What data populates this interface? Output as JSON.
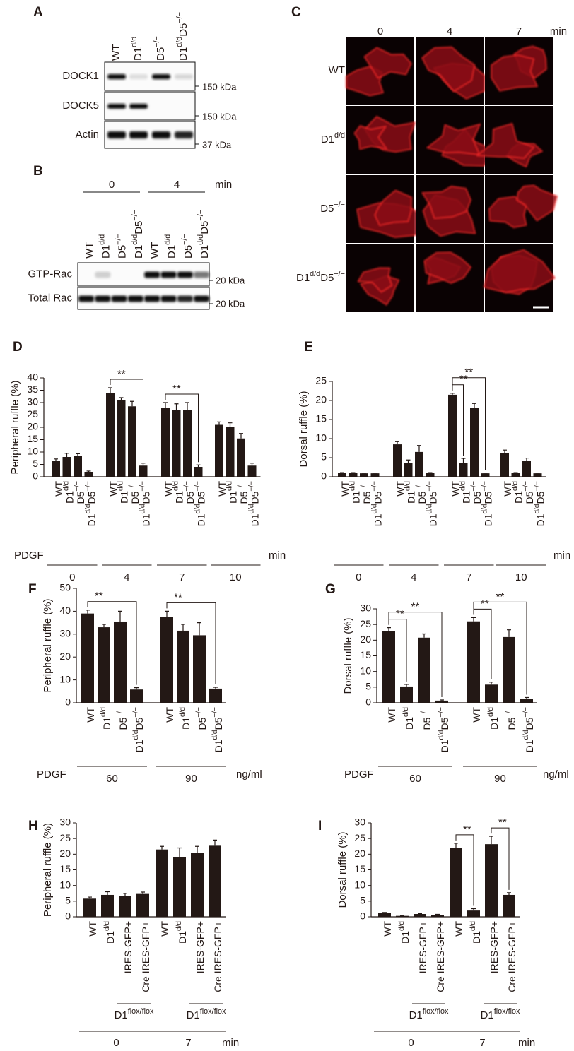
{
  "blot_a": {
    "panel": "A",
    "lanes": [
      "WT",
      "D1d/d",
      "D5−/−",
      "D1d/dD5−/−"
    ],
    "rows": [
      {
        "label": "DOCK1",
        "marker": "150 kDa"
      },
      {
        "label": "DOCK5",
        "marker": "150 kDa"
      },
      {
        "label": "Actin",
        "marker": "37 kDa"
      }
    ]
  },
  "blot_b": {
    "panel": "B",
    "timepoints": [
      "0",
      "4"
    ],
    "unit": "min",
    "lanes": [
      "WT",
      "D1d/d",
      "D5−/−",
      "D1d/dD5−/−",
      "WT",
      "D1d/d",
      "D5−/−",
      "D1d/dD5−/−"
    ],
    "rows": [
      {
        "label": "GTP-Rac",
        "marker": "20 kDa"
      },
      {
        "label": "Total Rac",
        "marker": "20 kDa"
      }
    ]
  },
  "micrograph_c": {
    "panel": "C",
    "timepoints": [
      "0",
      "4",
      "7"
    ],
    "unit": "min",
    "rows": [
      "WT",
      "D1d/d",
      "D5−/−",
      "D1d/dD5−/−"
    ]
  },
  "chart_data": [
    {
      "type": "bar",
      "panel": "D",
      "ylabel": "Peripheral ruffle (%)",
      "ylim": [
        0,
        40
      ],
      "yticks": [
        0,
        5,
        10,
        15,
        20,
        25,
        30,
        35,
        40
      ],
      "categories": [
        "WT",
        "D1d/d",
        "D5−/−",
        "D1d/dD5−/−",
        "WT",
        "D1d/d",
        "D5−/−",
        "D1d/dD5−/−",
        "WT",
        "D1d/d",
        "D5−/−",
        "D1d/dD5−/−",
        "WT",
        "D1d/d",
        "D5−/−",
        "D1d/dD5−/−"
      ],
      "values": [
        6.5,
        8,
        8.5,
        2,
        34,
        31,
        28.5,
        4.5,
        28,
        27,
        27,
        4,
        21,
        20,
        15.5,
        4.5
      ],
      "errors": [
        0.7,
        1.5,
        0.8,
        0.3,
        2,
        1,
        2,
        1,
        2,
        2.5,
        3,
        0.8,
        1.2,
        1.8,
        2,
        1
      ],
      "color": "#231815",
      "group_title": "PDGF",
      "groups": [
        "0",
        "4",
        "7",
        "10"
      ],
      "group_unit": "min",
      "significance": [
        {
          "from": 4,
          "to": 7,
          "label": "**"
        },
        {
          "from": 8,
          "to": 11,
          "label": "**"
        }
      ]
    },
    {
      "type": "bar",
      "panel": "E",
      "ylabel": "Dorsal ruffle (%)",
      "ylim": [
        0,
        25
      ],
      "yticks": [
        0,
        5,
        10,
        15,
        20,
        25
      ],
      "categories": [
        "WT",
        "D1d/d",
        "D5−/−",
        "D1d/dD5−/−",
        "WT",
        "D1d/d",
        "D5−/−",
        "D1d/dD5−/−",
        "WT",
        "D1d/d",
        "D5−/−",
        "D1d/dD5−/−",
        "WT",
        "D1d/d",
        "D5−/−",
        "D1d/dD5−/−"
      ],
      "values": [
        1,
        1,
        0.9,
        0.9,
        8.5,
        3.7,
        6.5,
        1,
        21.5,
        3.6,
        18,
        0.9,
        6.2,
        1,
        4.2,
        0.9
      ],
      "errors": [
        0.1,
        0.1,
        0.1,
        0.1,
        0.7,
        0.7,
        1.7,
        0.1,
        0.4,
        1.2,
        1.2,
        0.1,
        0.8,
        0.1,
        0.7,
        0.1
      ],
      "color": "#231815",
      "groups": [
        "0",
        "4",
        "7",
        "10"
      ],
      "group_unit": "min",
      "significance": [
        {
          "from": 8,
          "to": 9,
          "label": "**"
        },
        {
          "from": 8,
          "to": 11,
          "label": "**"
        }
      ]
    },
    {
      "type": "bar",
      "panel": "F",
      "ylabel": "Peripheral ruffle (%)",
      "ylim": [
        0,
        50
      ],
      "yticks": [
        0,
        10,
        20,
        30,
        40,
        50
      ],
      "categories": [
        "WT",
        "D1d/d",
        "D5−/−",
        "D1d/dD5−/−",
        "WT",
        "D1d/d",
        "D5−/−",
        "D1d/dD5−/−"
      ],
      "values": [
        39,
        33,
        35.5,
        5.8,
        37.5,
        31.5,
        29.5,
        6.2
      ],
      "errors": [
        1.5,
        1.3,
        4.5,
        0.8,
        2.5,
        2.8,
        5.5,
        0.6
      ],
      "color": "#231815",
      "group_title": "PDGF",
      "groups": [
        "60",
        "90"
      ],
      "group_unit": "ng/ml",
      "significance": [
        {
          "from": 0,
          "to": 3,
          "label": "**"
        },
        {
          "from": 4,
          "to": 7,
          "label": "**"
        }
      ]
    },
    {
      "type": "bar",
      "panel": "G",
      "ylabel": "Dorsal ruffle (%)",
      "ylim": [
        0,
        30
      ],
      "yticks": [
        0,
        5,
        10,
        15,
        20,
        25,
        30
      ],
      "categories": [
        "WT",
        "D1d/d",
        "D5−/−",
        "D1d/dD5−/−",
        "WT",
        "D1d/d",
        "D5−/−",
        "D1d/dD5−/−"
      ],
      "values": [
        23,
        5.2,
        20.8,
        0.7,
        26,
        5.8,
        21,
        1.3
      ],
      "errors": [
        1,
        0.7,
        1.2,
        0.2,
        1.2,
        0.8,
        2.3,
        0.4
      ],
      "color": "#231815",
      "group_title": "PDGF",
      "groups": [
        "60",
        "90"
      ],
      "group_unit": "ng/ml",
      "significance": [
        {
          "from": 0,
          "to": 1,
          "label": "**"
        },
        {
          "from": 0,
          "to": 3,
          "label": "**"
        },
        {
          "from": 4,
          "to": 5,
          "label": "**"
        },
        {
          "from": 4,
          "to": 7,
          "label": "**"
        }
      ]
    },
    {
      "type": "bar",
      "panel": "H",
      "ylabel": "Peripheral ruffle (%)",
      "ylim": [
        0,
        30
      ],
      "yticks": [
        0,
        5,
        10,
        15,
        20,
        25,
        30
      ],
      "categories": [
        "WT",
        "D1d/d",
        "IRES-GFP+",
        "Cre IRES-GFP+",
        "WT",
        "D1d/d",
        "IRES-GFP+",
        "Cre IRES-GFP+"
      ],
      "values": [
        5.8,
        7,
        6.7,
        7.3,
        21.5,
        19,
        20.5,
        22.7
      ],
      "errors": [
        0.5,
        1,
        0.8,
        0.6,
        1,
        3,
        2,
        1.8
      ],
      "color": "#231815",
      "groups": [
        "0",
        "7"
      ],
      "group_unit": "min",
      "sublabels": [
        {
          "label": "D1flox/flox",
          "from": 2,
          "to": 3
        },
        {
          "label": "D1flox/flox",
          "from": 6,
          "to": 7
        }
      ],
      "significance": []
    },
    {
      "type": "bar",
      "panel": "I",
      "ylabel": "Dorsal ruffle (%)",
      "ylim": [
        0,
        30
      ],
      "yticks": [
        0,
        5,
        10,
        15,
        20,
        25,
        30
      ],
      "categories": [
        "WT",
        "D1d/d",
        "IRES-GFP+",
        "Cre IRES-GFP+",
        "WT",
        "D1d/d",
        "IRES-GFP+",
        "Cre IRES-GFP+"
      ],
      "values": [
        1.2,
        0.3,
        0.9,
        0.5,
        22,
        2,
        23.2,
        7
      ],
      "errors": [
        0.2,
        0.1,
        0.1,
        0.3,
        1.5,
        0.6,
        2.5,
        0.7
      ],
      "color": "#231815",
      "groups": [
        "0",
        "7"
      ],
      "group_unit": "min",
      "sublabels": [
        {
          "label": "D1flox/flox",
          "from": 2,
          "to": 3
        },
        {
          "label": "D1flox/flox",
          "from": 6,
          "to": 7
        }
      ],
      "significance": [
        {
          "from": 4,
          "to": 5,
          "label": "**"
        },
        {
          "from": 6,
          "to": 7,
          "label": "**"
        }
      ]
    }
  ]
}
